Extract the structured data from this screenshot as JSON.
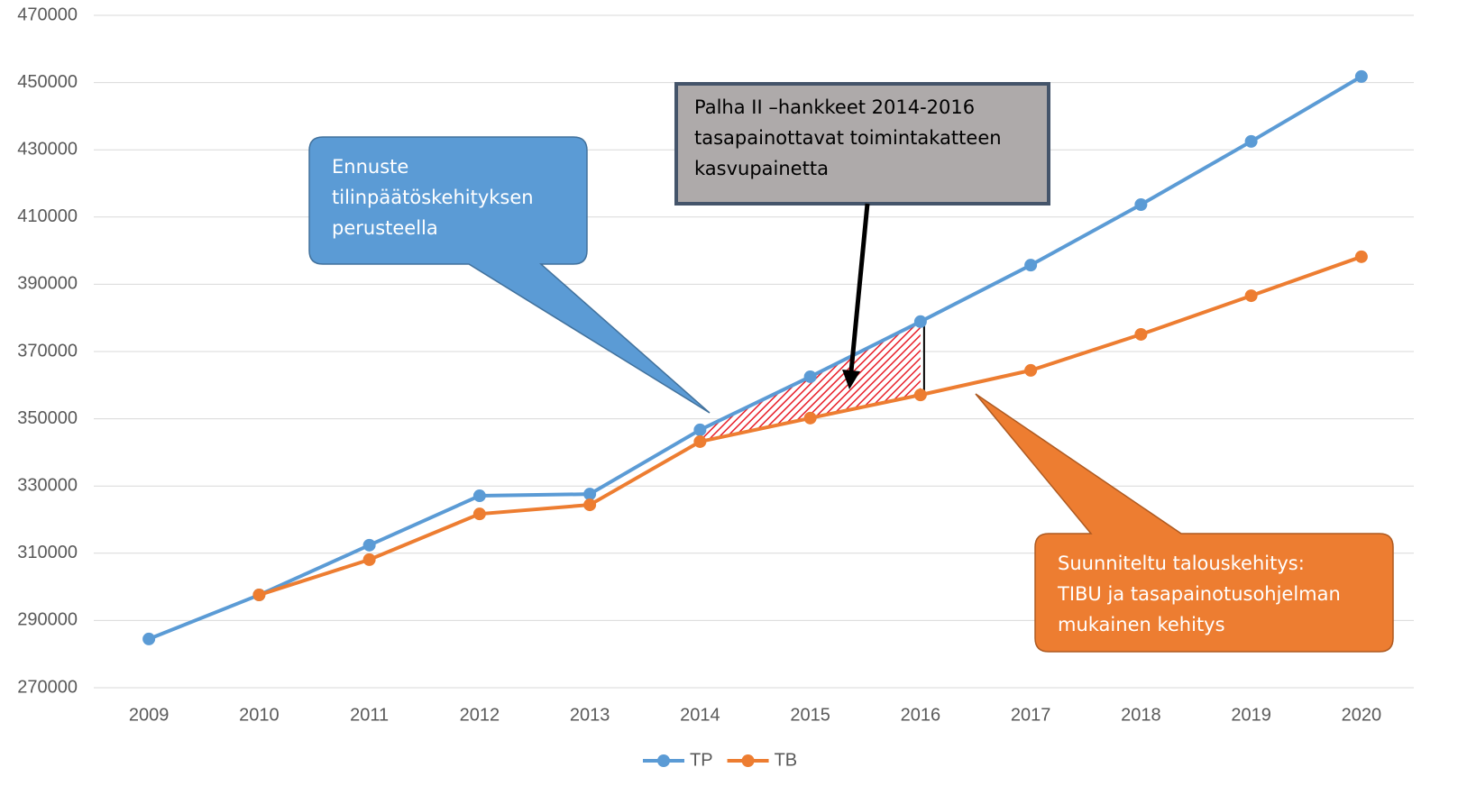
{
  "chart_data": {
    "type": "line",
    "categories": [
      "2009",
      "2010",
      "2011",
      "2012",
      "2013",
      "2014",
      "2015",
      "2016",
      "2017",
      "2018",
      "2019",
      "2020"
    ],
    "series": [
      {
        "name": "TP",
        "color": "#5b9bd5",
        "values": [
          284500,
          297600,
          312400,
          327100,
          327600,
          346700,
          362500,
          378900,
          395700,
          413700,
          432500,
          451800
        ]
      },
      {
        "name": "TB",
        "color": "#ed7d31",
        "values": [
          null,
          297600,
          308100,
          321700,
          324400,
          343200,
          350200,
          357100,
          364400,
          375100,
          386600,
          398200
        ]
      }
    ],
    "ylim": [
      270000,
      470000
    ],
    "yticks": [
      270000,
      290000,
      310000,
      330000,
      350000,
      370000,
      390000,
      410000,
      430000,
      450000,
      470000
    ],
    "grid": true,
    "legend": "bottom",
    "annotations": [
      [
        "Ennuste",
        "tilinpäätöskehityksen",
        "perusteella"
      ],
      [
        "Palha II –hankkeet  2014-2016",
        "tasapainottavat toimintakatteen",
        "kasvupainetta"
      ],
      [
        "Suunniteltu talouskehitys:",
        "TIBU ja tasapainotusohjelman",
        "mukainen kehitys"
      ]
    ]
  }
}
